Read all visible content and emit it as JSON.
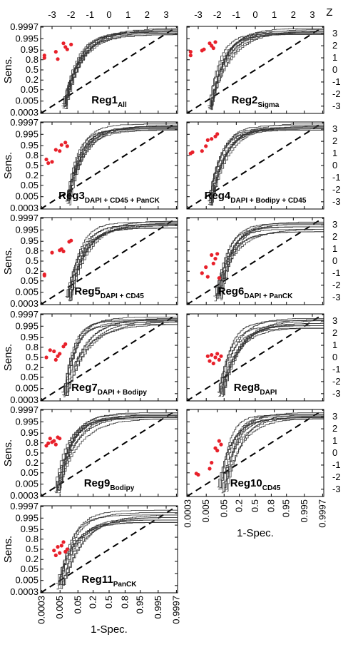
{
  "figure": {
    "y_axis_label": "Sens.",
    "x_axis_label": "1-Spec.",
    "z_axis_label": "Z",
    "probability_ticks": [
      "0.0003",
      "0.005",
      "0.05",
      "0.2",
      "0.5",
      "0.8",
      "0.95",
      "0.995",
      "0.9997"
    ],
    "z_ticks": [
      "-3",
      "-2",
      "-1",
      "0",
      "1",
      "2",
      "3"
    ],
    "series_color": "#333333",
    "point_color": "#e8202a",
    "diagonal_color": "#000000"
  },
  "chart_data": [
    {
      "type": "line",
      "panel_title": "Reg1",
      "panel_subscript": "All",
      "xlabel": "",
      "ylabel": "Sens.",
      "scale": "probit (normal deviate)",
      "xlim_z": [
        -3.6,
        3.6
      ],
      "ylim_z": [
        -3.6,
        3.6
      ],
      "reference_line": "diagonal (dashed)",
      "series_count": 10,
      "operating_points_z": [
        [
          -3.4,
          1.0
        ],
        [
          -3.4,
          1.2
        ],
        [
          -2.8,
          1.5
        ],
        [
          -2.7,
          0.9
        ],
        [
          -2.4,
          2.2
        ],
        [
          -2.3,
          1.9
        ],
        [
          -2.2,
          1.7
        ],
        [
          -2.0,
          2.1
        ]
      ],
      "curves_top_z": [
        2.9,
        3.0,
        3.1,
        3.2,
        3.3,
        3.4
      ],
      "curves_rise_z": [
        -2.5,
        -2.3
      ]
    },
    {
      "type": "line",
      "panel_title": "Reg2",
      "panel_subscript": "Sigma",
      "xlabel": "",
      "ylabel": "",
      "scale": "probit (normal deviate)",
      "xlim_z": [
        -3.6,
        3.6
      ],
      "ylim_z": [
        -3.6,
        3.6
      ],
      "reference_line": "diagonal (dashed)",
      "series_count": 10,
      "operating_points_z": [
        [
          -3.4,
          1.2
        ],
        [
          -3.4,
          1.5
        ],
        [
          -2.8,
          1.6
        ],
        [
          -2.7,
          1.7
        ],
        [
          -2.4,
          2.2
        ],
        [
          -2.3,
          2.0
        ],
        [
          -2.2,
          1.8
        ],
        [
          -2.1,
          2.3
        ]
      ],
      "curves_top_z": [
        2.9,
        3.0,
        3.1,
        3.2,
        3.3,
        3.4
      ],
      "curves_rise_z": [
        -2.5,
        -2.3
      ]
    },
    {
      "type": "line",
      "panel_title": "Reg3",
      "panel_subscript": "DAPI + CD45 + PanCK",
      "xlabel": "",
      "ylabel": "Sens.",
      "scale": "probit (normal deviate)",
      "xlim_z": [
        -3.6,
        3.6
      ],
      "ylim_z": [
        -3.6,
        3.6
      ],
      "reference_line": "diagonal (dashed)",
      "series_count": 10,
      "operating_points_z": [
        [
          -3.3,
          0.5
        ],
        [
          -3.2,
          0.2
        ],
        [
          -3.0,
          0.3
        ],
        [
          -2.8,
          1.3
        ],
        [
          -2.6,
          1.2
        ],
        [
          -2.5,
          1.7
        ],
        [
          -2.3,
          1.9
        ],
        [
          -2.2,
          1.6
        ]
      ],
      "curves_top_z": [
        2.9,
        3.0,
        3.1,
        3.2,
        3.3,
        3.4
      ],
      "curves_rise_z": [
        -2.3,
        -2.1
      ]
    },
    {
      "type": "line",
      "panel_title": "Reg4",
      "panel_subscript": "DAPI + Bodipy + CD45",
      "xlabel": "",
      "ylabel": "",
      "scale": "probit (normal deviate)",
      "xlim_z": [
        -3.6,
        3.6
      ],
      "ylim_z": [
        -3.6,
        3.6
      ],
      "reference_line": "diagonal (dashed)",
      "series_count": 10,
      "operating_points_z": [
        [
          -3.4,
          1.0
        ],
        [
          -3.3,
          1.1
        ],
        [
          -2.8,
          1.2
        ],
        [
          -2.6,
          1.6
        ],
        [
          -2.5,
          2.1
        ],
        [
          -2.3,
          2.2
        ],
        [
          -2.1,
          2.4
        ],
        [
          -2.0,
          2.6
        ]
      ],
      "curves_top_z": [
        2.9,
        3.0,
        3.1,
        3.2,
        3.3,
        3.4
      ],
      "curves_rise_z": [
        -2.5,
        -2.3
      ]
    },
    {
      "type": "line",
      "panel_title": "Reg5",
      "panel_subscript": "DAPI + CD45",
      "xlabel": "",
      "ylabel": "Sens.",
      "scale": "probit (normal deviate)",
      "xlim_z": [
        -3.6,
        3.6
      ],
      "ylim_z": [
        -3.6,
        3.6
      ],
      "reference_line": "diagonal (dashed)",
      "series_count": 10,
      "operating_points_z": [
        [
          -3.4,
          -1.2
        ],
        [
          -3.4,
          -1.1
        ],
        [
          -3.0,
          0.7
        ],
        [
          -2.6,
          0.9
        ],
        [
          -2.5,
          1.0
        ],
        [
          -2.4,
          0.8
        ],
        [
          -2.1,
          1.6
        ],
        [
          -2.0,
          1.7
        ]
      ],
      "curves_top_z": [
        2.7,
        2.9,
        3.0,
        3.1,
        3.2,
        3.3
      ],
      "curves_rise_z": [
        -2.3,
        -2.0
      ]
    },
    {
      "type": "line",
      "panel_title": "Reg6",
      "panel_subscript": "DAPI + PanCK",
      "xlabel": "",
      "ylabel": "",
      "scale": "probit (normal deviate)",
      "xlim_z": [
        -3.6,
        3.6
      ],
      "ylim_z": [
        -3.6,
        3.6
      ],
      "reference_line": "diagonal (dashed)",
      "series_count": 10,
      "operating_points_z": [
        [
          -2.8,
          -1.0
        ],
        [
          -2.6,
          -0.5
        ],
        [
          -2.5,
          -1.3
        ],
        [
          -2.3,
          0.5
        ],
        [
          -2.2,
          -0.2
        ],
        [
          -2.1,
          0.2
        ],
        [
          -2.0,
          0.6
        ],
        [
          -1.9,
          -1.4
        ]
      ],
      "curves_top_z": [
        2.4,
        2.6,
        2.8,
        3.0,
        3.1,
        3.2
      ],
      "curves_rise_z": [
        -2.2,
        -1.8
      ]
    },
    {
      "type": "line",
      "panel_title": "Reg7",
      "panel_subscript": "DAPI + Bodipy",
      "xlabel": "",
      "ylabel": "Sens.",
      "scale": "probit (normal deviate)",
      "xlim_z": [
        -3.6,
        3.6
      ],
      "ylim_z": [
        -3.6,
        3.6
      ],
      "reference_line": "diagonal (dashed)",
      "series_count": 10,
      "operating_points_z": [
        [
          -3.3,
          0.0
        ],
        [
          -3.1,
          0.6
        ],
        [
          -2.9,
          0.5
        ],
        [
          -2.8,
          -0.2
        ],
        [
          -2.7,
          0.1
        ],
        [
          -2.6,
          0.3
        ],
        [
          -2.4,
          0.9
        ],
        [
          -2.3,
          1.1
        ]
      ],
      "curves_top_z": [
        2.7,
        2.9,
        3.0,
        3.1,
        3.2,
        3.3
      ],
      "curves_rise_z": [
        -2.5,
        -2.2
      ]
    },
    {
      "type": "line",
      "panel_title": "Reg8",
      "panel_subscript": "DAPI",
      "xlabel": "",
      "ylabel": "",
      "scale": "probit (normal deviate)",
      "xlim_z": [
        -3.6,
        3.6
      ],
      "ylim_z": [
        -3.6,
        3.6
      ],
      "reference_line": "diagonal (dashed)",
      "series_count": 10,
      "operating_points_z": [
        [
          -2.5,
          0.1
        ],
        [
          -2.4,
          -0.3
        ],
        [
          -2.3,
          0.2
        ],
        [
          -2.2,
          -0.5
        ],
        [
          -2.1,
          0.0
        ],
        [
          -2.0,
          0.3
        ],
        [
          -1.9,
          -0.2
        ],
        [
          -1.8,
          0.1
        ]
      ],
      "curves_top_z": [
        2.4,
        2.6,
        2.8,
        3.0,
        3.1,
        3.2
      ],
      "curves_rise_z": [
        -2.0,
        -1.7
      ]
    },
    {
      "type": "line",
      "panel_title": "Reg9",
      "panel_subscript": "Bodipy",
      "xlabel": "",
      "ylabel": "Sens.",
      "scale": "probit (normal deviate)",
      "xlim_z": [
        -3.6,
        3.6
      ],
      "ylim_z": [
        -3.6,
        3.6
      ],
      "reference_line": "diagonal (dashed)",
      "series_count": 10,
      "operating_points_z": [
        [
          -3.3,
          0.6
        ],
        [
          -3.2,
          0.8
        ],
        [
          -3.1,
          1.2
        ],
        [
          -3.0,
          0.9
        ],
        [
          -2.9,
          1.0
        ],
        [
          -2.8,
          0.7
        ],
        [
          -2.7,
          1.3
        ],
        [
          -2.6,
          1.2
        ]
      ],
      "curves_top_z": [
        2.8,
        2.9,
        3.0,
        3.1,
        3.2,
        3.3
      ],
      "curves_rise_z": [
        -2.9,
        -2.6
      ]
    },
    {
      "type": "line",
      "panel_title": "Reg10",
      "panel_subscript": "CD45",
      "xlabel": "1-Spec.",
      "ylabel": "",
      "scale": "probit (normal deviate)",
      "xlim_z": [
        -3.6,
        3.6
      ],
      "ylim_z": [
        -3.6,
        3.6
      ],
      "reference_line": "diagonal (dashed)",
      "series_count": 10,
      "operating_points_z": [
        [
          -3.1,
          -1.7
        ],
        [
          -3.0,
          -1.8
        ],
        [
          -2.4,
          -1.3
        ],
        [
          -2.3,
          -0.8
        ],
        [
          -2.1,
          0.4
        ],
        [
          -2.0,
          0.2
        ],
        [
          -1.9,
          1.0
        ],
        [
          -1.8,
          0.7
        ]
      ],
      "curves_top_z": [
        2.8,
        2.9,
        3.0,
        3.1,
        3.2,
        3.3
      ],
      "curves_rise_z": [
        -2.0,
        -1.5
      ]
    },
    {
      "type": "line",
      "panel_title": "Reg11",
      "panel_subscript": "PanCK",
      "xlabel": "1-Spec.",
      "ylabel": "Sens.",
      "scale": "probit (normal deviate)",
      "xlim_z": [
        -3.6,
        3.6
      ],
      "ylim_z": [
        -3.6,
        3.6
      ],
      "reference_line": "diagonal (dashed)",
      "series_count": 10,
      "operating_points_z": [
        [
          -2.9,
          -0.1
        ],
        [
          -2.8,
          -0.5
        ],
        [
          -2.7,
          0.2
        ],
        [
          -2.6,
          -0.3
        ],
        [
          -2.5,
          0.3
        ],
        [
          -2.4,
          0.6
        ],
        [
          -2.3,
          -0.2
        ],
        [
          -2.2,
          0.0
        ]
      ],
      "curves_top_z": [
        2.2,
        2.4,
        2.6,
        2.8,
        3.0,
        3.2
      ],
      "curves_rise_z": [
        -2.8,
        -2.4
      ]
    }
  ]
}
